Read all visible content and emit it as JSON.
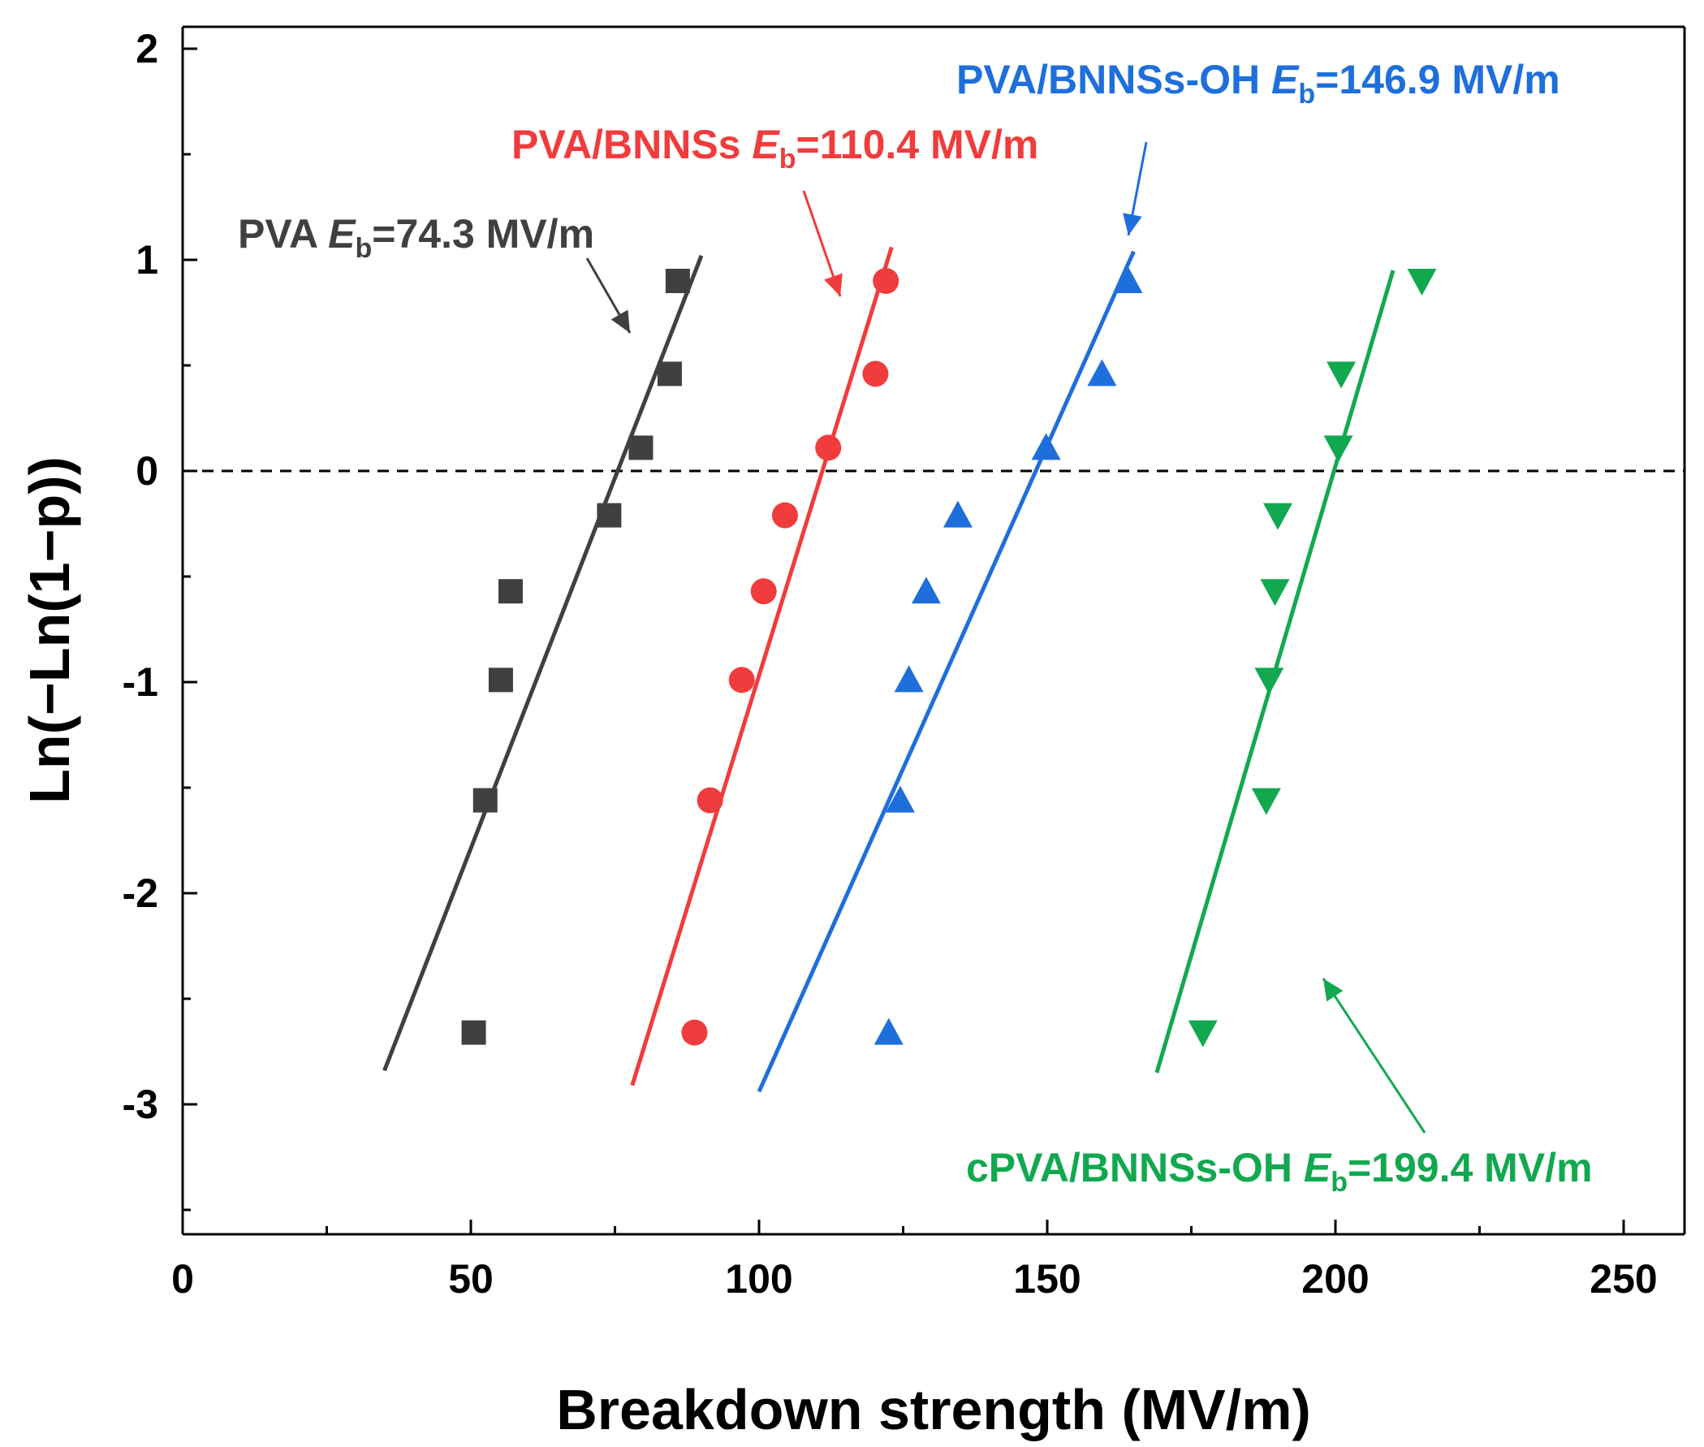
{
  "chart_data": {
    "type": "scatter",
    "title": "",
    "xlabel": "Breakdown strength (MV/m)",
    "ylabel": "Ln(−Ln(1−p))",
    "xlim": [
      0,
      260
    ],
    "ylim": [
      -3.6,
      2.1
    ],
    "xticks": [
      0,
      50,
      100,
      150,
      200,
      250
    ],
    "yticks": [
      -3,
      -2,
      -1,
      0,
      1,
      2
    ],
    "reference_line": {
      "y": 0,
      "style": "dashed",
      "color": "#000000"
    },
    "series": [
      {
        "name": "PVA",
        "label_prefix": "PVA ",
        "label_value": "=74.3 MV/m",
        "color": "#404040",
        "marker": "square",
        "x": [
          50.5,
          52.5,
          55.2,
          56.9,
          74.0,
          79.5,
          84.5,
          85.9
        ],
        "y": [
          -2.66,
          -1.56,
          -0.99,
          -0.57,
          -0.21,
          0.11,
          0.46,
          0.9
        ],
        "fit": {
          "x": [
            35,
            90
          ],
          "y": [
            -2.84,
            1.02
          ]
        }
      },
      {
        "name": "PVA/BNNSs",
        "label_prefix": "PVA/BNNSs ",
        "label_value": "=110.4 MV/m",
        "color": "#f03c3c",
        "marker": "circle",
        "x": [
          88.8,
          91.5,
          97.0,
          100.8,
          104.5,
          112.0,
          120.2,
          122.0
        ],
        "y": [
          -2.66,
          -1.56,
          -0.99,
          -0.57,
          -0.21,
          0.11,
          0.46,
          0.9
        ],
        "fit": {
          "x": [
            78,
            123
          ],
          "y": [
            -2.91,
            1.06
          ]
        }
      },
      {
        "name": "PVA/BNNSs-OH",
        "label_prefix": "PVA/BNNSs-OH ",
        "label_value": "=146.9 MV/m",
        "color": "#1e6fdc",
        "marker": "triangle-up",
        "x": [
          122.5,
          124.5,
          126.0,
          129.0,
          134.5,
          149.8,
          159.5,
          164.0
        ],
        "y": [
          -2.66,
          -1.56,
          -0.99,
          -0.57,
          -0.21,
          0.11,
          0.46,
          0.9
        ],
        "fit": {
          "x": [
            100,
            165
          ],
          "y": [
            -2.94,
            1.04
          ]
        }
      },
      {
        "name": "cPVA/BNNSs-OH",
        "label_prefix": "cPVA/BNNSs-OH ",
        "label_value": "=199.4 MV/m",
        "color": "#12a850",
        "marker": "triangle-down",
        "x": [
          177.0,
          188.0,
          188.5,
          189.5,
          190.0,
          200.5,
          201.0,
          215.0
        ],
        "y": [
          -2.66,
          -1.56,
          -0.99,
          -0.57,
          -0.21,
          0.11,
          0.46,
          0.9
        ],
        "fit": {
          "x": [
            169,
            210
          ],
          "y": [
            -2.85,
            0.95
          ]
        }
      }
    ],
    "annotations_symbol": "E",
    "annotations_subscript": "b"
  }
}
